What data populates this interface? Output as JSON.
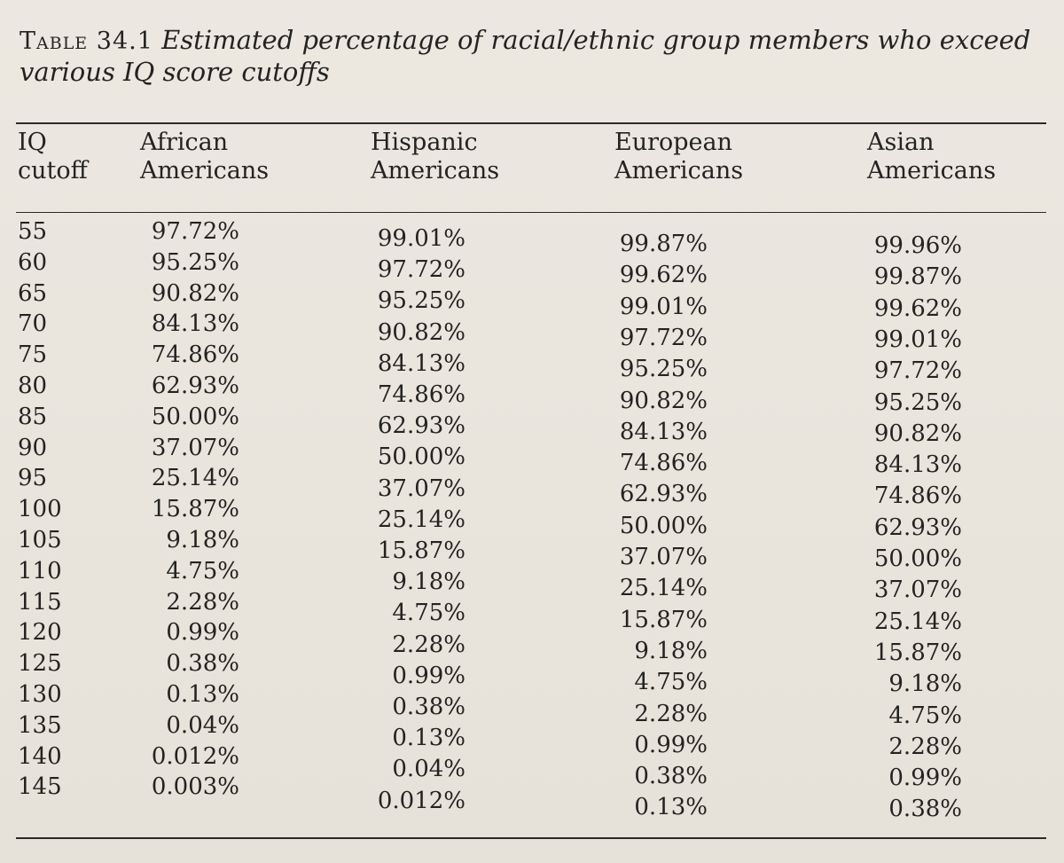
{
  "caption": {
    "label": "Table 34.1",
    "title": "Estimated percentage of racial/ethnic group members who exceed various IQ score cutoffs"
  },
  "table": {
    "headers": [
      "IQ\ncutoff",
      "African\nAmericans",
      "Hispanic\nAmericans",
      "European\nAmericans",
      "Asian\nAmericans"
    ],
    "rows": [
      [
        "55",
        "97.72%",
        "99.01%",
        "99.87%",
        "99.96%"
      ],
      [
        "60",
        "95.25%",
        "97.72%",
        "99.62%",
        "99.87%"
      ],
      [
        "65",
        "90.82%",
        "95.25%",
        "99.01%",
        "99.62%"
      ],
      [
        "70",
        "84.13%",
        "90.82%",
        "97.72%",
        "99.01%"
      ],
      [
        "75",
        "74.86%",
        "84.13%",
        "95.25%",
        "97.72%"
      ],
      [
        "80",
        "62.93%",
        "74.86%",
        "90.82%",
        "95.25%"
      ],
      [
        "85",
        "50.00%",
        "62.93%",
        "84.13%",
        "90.82%"
      ],
      [
        "90",
        "37.07%",
        "50.00%",
        "74.86%",
        "84.13%"
      ],
      [
        "95",
        "25.14%",
        "37.07%",
        "62.93%",
        "74.86%"
      ],
      [
        "100",
        "15.87%",
        "25.14%",
        "50.00%",
        "62.93%"
      ],
      [
        "105",
        "9.18%",
        "15.87%",
        "37.07%",
        "50.00%"
      ],
      [
        "110",
        "4.75%",
        "9.18%",
        "25.14%",
        "37.07%"
      ],
      [
        "115",
        "2.28%",
        "4.75%",
        "15.87%",
        "25.14%"
      ],
      [
        "120",
        "0.99%",
        "2.28%",
        "9.18%",
        "15.87%"
      ],
      [
        "125",
        "0.38%",
        "0.99%",
        "4.75%",
        "9.18%"
      ],
      [
        "130",
        "0.13%",
        "0.38%",
        "2.28%",
        "4.75%"
      ],
      [
        "135",
        "0.04%",
        "0.13%",
        "0.99%",
        "2.28%"
      ],
      [
        "140",
        "0.012%",
        "0.04%",
        "0.38%",
        "0.99%"
      ],
      [
        "145",
        "0.003%",
        "0.012%",
        "0.13%",
        "0.38%"
      ]
    ]
  }
}
